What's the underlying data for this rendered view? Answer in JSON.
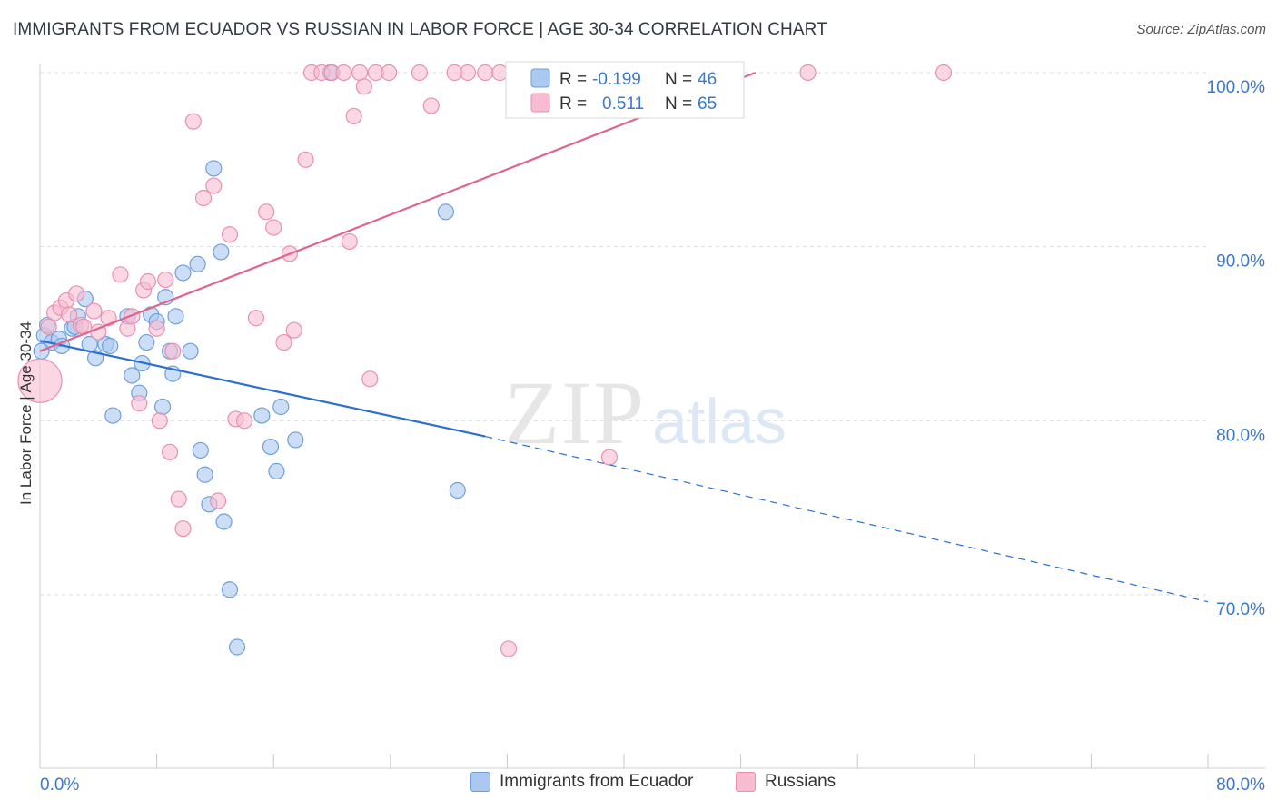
{
  "title": "IMMIGRANTS FROM ECUADOR VS RUSSIAN IN LABOR FORCE | AGE 30-34 CORRELATION CHART",
  "source": "Source: ZipAtlas.com",
  "watermark": {
    "zip": "ZIP",
    "atlas": "atlas"
  },
  "colors": {
    "blue_fill": "#aac8f0",
    "blue_stroke": "#6f9fdb",
    "blue_line": "#2a70d0",
    "pink_fill": "#f7bcd0",
    "pink_stroke": "#ea8fb0",
    "pink_line": "#e0648e",
    "axis_text": "#3a78d0",
    "grid": "#dcdcdc"
  },
  "legend_top": {
    "rows": [
      {
        "r_label": "R =",
        "r_value": "-0.199",
        "n_label": "N =",
        "n_value": "46",
        "color": "blue"
      },
      {
        "r_label": "R =",
        "r_value": "0.511",
        "n_label": "N =",
        "n_value": "65",
        "color": "pink"
      }
    ]
  },
  "legend_bottom": [
    {
      "label": "Immigrants from Ecuador",
      "color": "blue"
    },
    {
      "label": "Russians",
      "color": "pink"
    }
  ],
  "chart_data": {
    "type": "scatter",
    "title": "IMMIGRANTS FROM ECUADOR VS RUSSIAN IN LABOR FORCE | AGE 30-34 CORRELATION CHART",
    "xlabel": "",
    "ylabel": "In Labor Force | Age 30-34",
    "xlim": [
      0,
      80
    ],
    "ylim": [
      61,
      101
    ],
    "x_tick_labels": [
      "0.0%",
      "80.0%"
    ],
    "y_ticks": [
      70,
      80,
      90,
      100
    ],
    "y_tick_labels": [
      "70.0%",
      "80.0%",
      "90.0%",
      "100.0%"
    ],
    "grid": true,
    "legend": "top-center",
    "series": [
      {
        "name": "Immigrants from Ecuador",
        "color": "blue",
        "trend": {
          "x": [
            0,
            30.5
          ],
          "y": [
            84.6,
            79.1
          ],
          "dashed_to": [
            80,
            69.6
          ]
        },
        "points": [
          [
            0.3,
            84.9
          ],
          [
            0.5,
            85.5
          ],
          [
            0.8,
            84.5
          ],
          [
            1.3,
            84.7
          ],
          [
            1.5,
            84.3
          ],
          [
            2.2,
            85.3
          ],
          [
            2.4,
            85.4
          ],
          [
            2.6,
            86.0
          ],
          [
            3.1,
            87.0
          ],
          [
            3.4,
            84.4
          ],
          [
            3.8,
            83.6
          ],
          [
            4.5,
            84.4
          ],
          [
            4.8,
            84.3
          ],
          [
            5.0,
            80.3
          ],
          [
            6.0,
            86.0
          ],
          [
            6.3,
            82.6
          ],
          [
            6.8,
            81.6
          ],
          [
            7.0,
            83.3
          ],
          [
            7.3,
            84.5
          ],
          [
            7.6,
            86.1
          ],
          [
            8.0,
            85.7
          ],
          [
            8.4,
            80.8
          ],
          [
            8.6,
            87.1
          ],
          [
            8.9,
            84.0
          ],
          [
            9.1,
            82.7
          ],
          [
            9.3,
            86.0
          ],
          [
            9.8,
            88.5
          ],
          [
            10.3,
            84.0
          ],
          [
            10.8,
            89.0
          ],
          [
            11.0,
            78.3
          ],
          [
            11.3,
            76.9
          ],
          [
            11.6,
            75.2
          ],
          [
            11.9,
            94.5
          ],
          [
            12.4,
            89.7
          ],
          [
            12.6,
            74.2
          ],
          [
            13.0,
            70.3
          ],
          [
            13.5,
            67.0
          ],
          [
            15.2,
            80.3
          ],
          [
            15.8,
            78.5
          ],
          [
            16.2,
            77.1
          ],
          [
            16.5,
            80.8
          ],
          [
            17.5,
            78.9
          ],
          [
            19.9,
            100.0
          ],
          [
            27.8,
            92.0
          ],
          [
            28.6,
            76.0
          ],
          [
            0.1,
            84.0
          ]
        ]
      },
      {
        "name": "Russians",
        "color": "pink",
        "trend": {
          "x": [
            0,
            49
          ],
          "y": [
            84.0,
            100.0
          ]
        },
        "points": [
          [
            0.0,
            82.3
          ],
          [
            0.6,
            85.4
          ],
          [
            1.0,
            86.2
          ],
          [
            1.4,
            86.5
          ],
          [
            1.8,
            86.9
          ],
          [
            2.0,
            86.1
          ],
          [
            2.5,
            87.3
          ],
          [
            2.8,
            85.5
          ],
          [
            3.0,
            85.4
          ],
          [
            3.7,
            86.3
          ],
          [
            4.0,
            85.1
          ],
          [
            4.7,
            85.9
          ],
          [
            5.5,
            88.4
          ],
          [
            6.0,
            85.3
          ],
          [
            6.3,
            86.0
          ],
          [
            6.8,
            81.0
          ],
          [
            7.1,
            87.5
          ],
          [
            7.4,
            88.0
          ],
          [
            8.0,
            85.3
          ],
          [
            8.2,
            80.0
          ],
          [
            8.6,
            88.1
          ],
          [
            8.9,
            78.2
          ],
          [
            9.1,
            84.0
          ],
          [
            9.5,
            75.5
          ],
          [
            9.8,
            73.8
          ],
          [
            10.5,
            97.2
          ],
          [
            11.2,
            92.8
          ],
          [
            11.9,
            93.5
          ],
          [
            12.2,
            75.4
          ],
          [
            13.0,
            90.7
          ],
          [
            13.4,
            80.1
          ],
          [
            14.0,
            80.0
          ],
          [
            14.8,
            85.9
          ],
          [
            15.5,
            92.0
          ],
          [
            16.0,
            91.1
          ],
          [
            16.7,
            84.5
          ],
          [
            17.1,
            89.6
          ],
          [
            17.4,
            85.2
          ],
          [
            18.2,
            95.0
          ],
          [
            18.6,
            100.0
          ],
          [
            19.3,
            100.0
          ],
          [
            20.0,
            100.0
          ],
          [
            20.8,
            100.0
          ],
          [
            21.2,
            90.3
          ],
          [
            21.5,
            97.5
          ],
          [
            21.9,
            100.0
          ],
          [
            22.2,
            99.2
          ],
          [
            22.6,
            82.4
          ],
          [
            23.0,
            100.0
          ],
          [
            23.9,
            100.0
          ],
          [
            26.0,
            100.0
          ],
          [
            26.8,
            98.1
          ],
          [
            28.4,
            100.0
          ],
          [
            29.3,
            100.0
          ],
          [
            30.5,
            100.0
          ],
          [
            31.5,
            100.0
          ],
          [
            32.1,
            66.9
          ],
          [
            33.1,
            100.0
          ],
          [
            34.3,
            100.0
          ],
          [
            35.7,
            100.0
          ],
          [
            36.3,
            100.0
          ],
          [
            37.5,
            100.0
          ],
          [
            39.0,
            77.9
          ],
          [
            52.6,
            100.0
          ],
          [
            61.9,
            100.0
          ]
        ]
      }
    ]
  }
}
